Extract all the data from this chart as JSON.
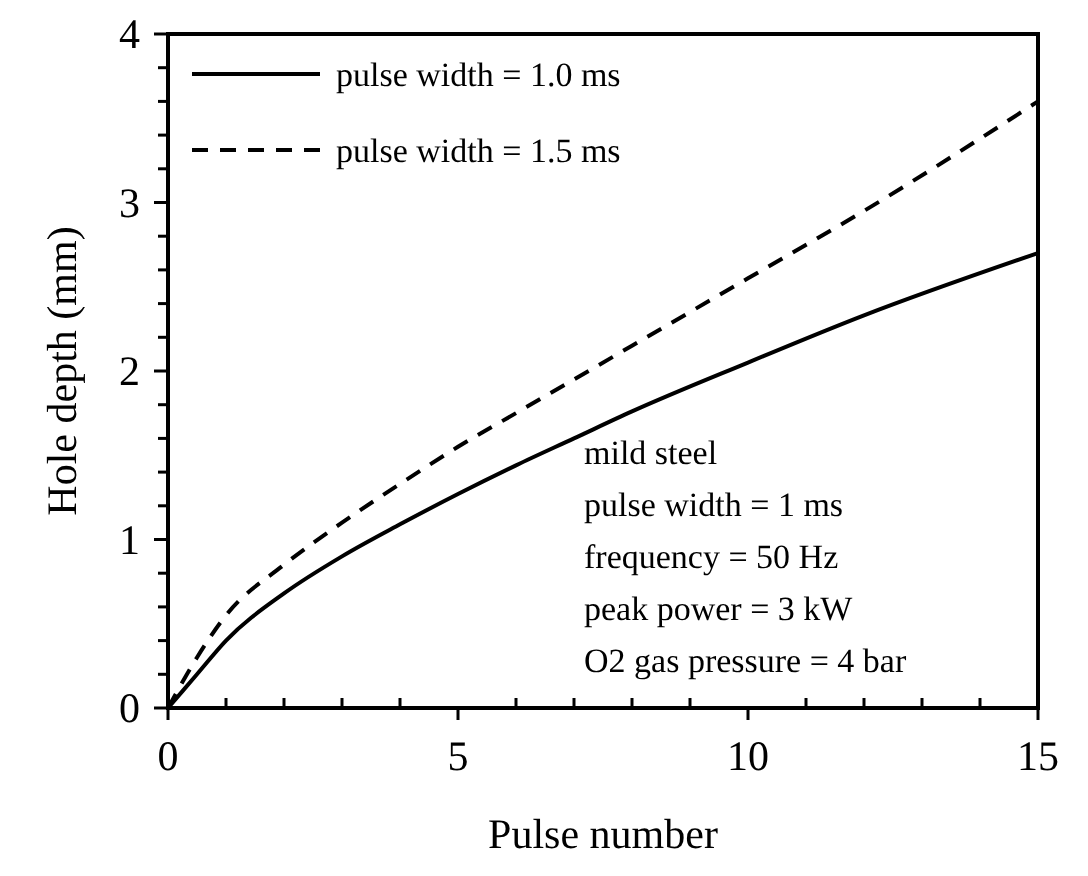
{
  "chart_data": {
    "type": "line",
    "xlabel": "Pulse number",
    "ylabel": "Hole depth (mm)",
    "xlim": [
      0,
      15
    ],
    "ylim": [
      0,
      4
    ],
    "xticks": [
      0,
      {
        "value": 1,
        "label": null
      },
      {
        "value": 2,
        "label": null
      },
      {
        "value": 3,
        "label": null
      },
      {
        "value": 4,
        "label": null
      },
      5,
      {
        "value": 6,
        "label": null
      },
      {
        "value": 7,
        "label": null
      },
      {
        "value": 8,
        "label": null
      },
      {
        "value": 9,
        "label": null
      },
      10,
      {
        "value": 11,
        "label": null
      },
      {
        "value": 12,
        "label": null
      },
      {
        "value": 13,
        "label": null
      },
      {
        "value": 14,
        "label": null
      },
      15
    ],
    "yticks": [
      0,
      {
        "value": 0.2,
        "label": null
      },
      {
        "value": 0.4,
        "label": null
      },
      {
        "value": 0.6,
        "label": null
      },
      {
        "value": 0.8,
        "label": null
      },
      1,
      {
        "value": 1.2,
        "label": null
      },
      {
        "value": 1.4,
        "label": null
      },
      {
        "value": 1.6,
        "label": null
      },
      {
        "value": 1.8,
        "label": null
      },
      2,
      {
        "value": 2.2,
        "label": null
      },
      {
        "value": 2.4,
        "label": null
      },
      {
        "value": 2.6,
        "label": null
      },
      {
        "value": 2.8,
        "label": null
      },
      3,
      {
        "value": 3.2,
        "label": null
      },
      {
        "value": 3.4,
        "label": null
      },
      {
        "value": 3.6,
        "label": null
      },
      {
        "value": 3.8,
        "label": null
      },
      4
    ],
    "x": [
      0,
      0.5,
      1,
      2,
      3,
      4,
      5,
      6,
      7,
      8,
      10,
      12,
      15
    ],
    "series": [
      {
        "name": "pulse width = 1.0 ms",
        "color": "#000000",
        "line_style": "solid",
        "values": [
          0,
          0.2,
          0.4,
          0.68,
          0.9,
          1.09,
          1.27,
          1.44,
          1.6,
          1.76,
          2.05,
          2.33,
          2.7
        ]
      },
      {
        "name": "pulse width = 1.5 ms",
        "color": "#000000",
        "line_style": "dashed",
        "values": [
          0,
          0.3,
          0.55,
          0.85,
          1.1,
          1.33,
          1.55,
          1.75,
          1.95,
          2.15,
          2.55,
          2.95,
          3.6
        ]
      }
    ],
    "legend": "top left",
    "grid": false,
    "marker": "none",
    "annotations": [
      "mild steel",
      "pulse width = 1 ms",
      "frequency = 50 Hz",
      "peak power = 3 kW",
      "O2 gas pressure = 4 bar"
    ]
  }
}
